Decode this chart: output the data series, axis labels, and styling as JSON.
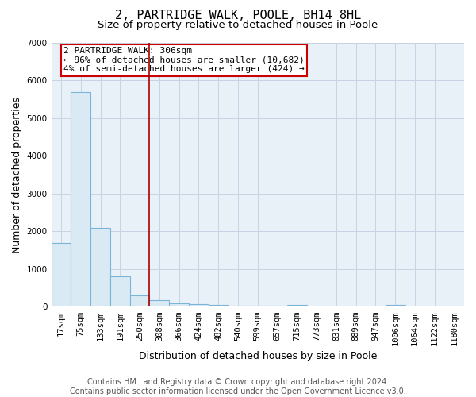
{
  "title": "2, PARTRIDGE WALK, POOLE, BH14 8HL",
  "subtitle": "Size of property relative to detached houses in Poole",
  "xlabel": "Distribution of detached houses by size in Poole",
  "ylabel": "Number of detached properties",
  "footnote1": "Contains HM Land Registry data © Crown copyright and database right 2024.",
  "footnote2": "Contains public sector information licensed under the Open Government Licence v3.0.",
  "bar_labels": [
    "17sqm",
    "75sqm",
    "133sqm",
    "191sqm",
    "250sqm",
    "308sqm",
    "366sqm",
    "424sqm",
    "482sqm",
    "540sqm",
    "599sqm",
    "657sqm",
    "715sqm",
    "773sqm",
    "831sqm",
    "889sqm",
    "947sqm",
    "1006sqm",
    "1064sqm",
    "1122sqm",
    "1180sqm"
  ],
  "bar_heights": [
    1700,
    5700,
    2100,
    800,
    310,
    175,
    95,
    70,
    50,
    35,
    25,
    20,
    55,
    0,
    0,
    0,
    0,
    55,
    0,
    0,
    0
  ],
  "bar_color": "#daeaf5",
  "bar_edge_color": "#7ab5d8",
  "vline_x": 4.5,
  "vline_color": "#aa0000",
  "annotation_text": "2 PARTRIDGE WALK: 306sqm\n← 96% of detached houses are smaller (10,682)\n4% of semi-detached houses are larger (424) →",
  "annotation_box_color": "#cc0000",
  "ylim": [
    0,
    7000
  ],
  "yticks": [
    0,
    1000,
    2000,
    3000,
    4000,
    5000,
    6000,
    7000
  ],
  "title_fontsize": 11,
  "subtitle_fontsize": 9.5,
  "axis_label_fontsize": 9,
  "tick_fontsize": 7.5,
  "annotation_fontsize": 8,
  "footnote_fontsize": 7,
  "background_color": "#ffffff",
  "grid_color": "#c8d4e4",
  "plot_bg_color": "#e8f0f8"
}
